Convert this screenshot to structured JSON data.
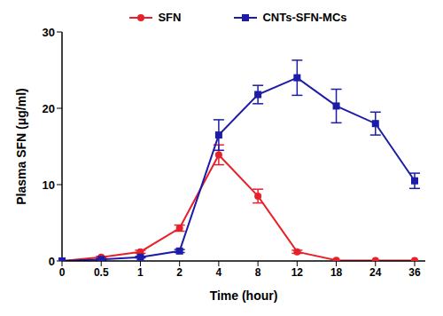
{
  "chart_data": {
    "type": "line",
    "x_label": "Time (hour)",
    "y_label": "Plasma SFN (μg/ml)",
    "categories": [
      "0",
      "0.5",
      "1",
      "2",
      "4",
      "8",
      "12",
      "18",
      "24",
      "36"
    ],
    "ylim": [
      0,
      30
    ],
    "yticks": [
      0,
      10,
      20,
      30
    ],
    "grid": false,
    "legend": "top",
    "series": [
      {
        "name": "SFN",
        "color": "#e8202a",
        "marker": "circle",
        "values": [
          0,
          0.5,
          1.2,
          4.3,
          13.9,
          8.5,
          1.2,
          0.1,
          0.05,
          0.05
        ],
        "errors": [
          0,
          0.1,
          0.2,
          0.4,
          1.3,
          0.9,
          0.2,
          0,
          0,
          0
        ]
      },
      {
        "name": "CNTs-SFN-MCs",
        "color": "#1c1ca8",
        "marker": "square",
        "values": [
          0,
          0.2,
          0.5,
          1.3,
          16.5,
          21.8,
          24,
          20.3,
          18,
          10.5
        ],
        "errors": [
          0,
          0.1,
          0.1,
          0.2,
          2,
          1.2,
          2.3,
          2.2,
          1.5,
          1
        ]
      }
    ]
  }
}
